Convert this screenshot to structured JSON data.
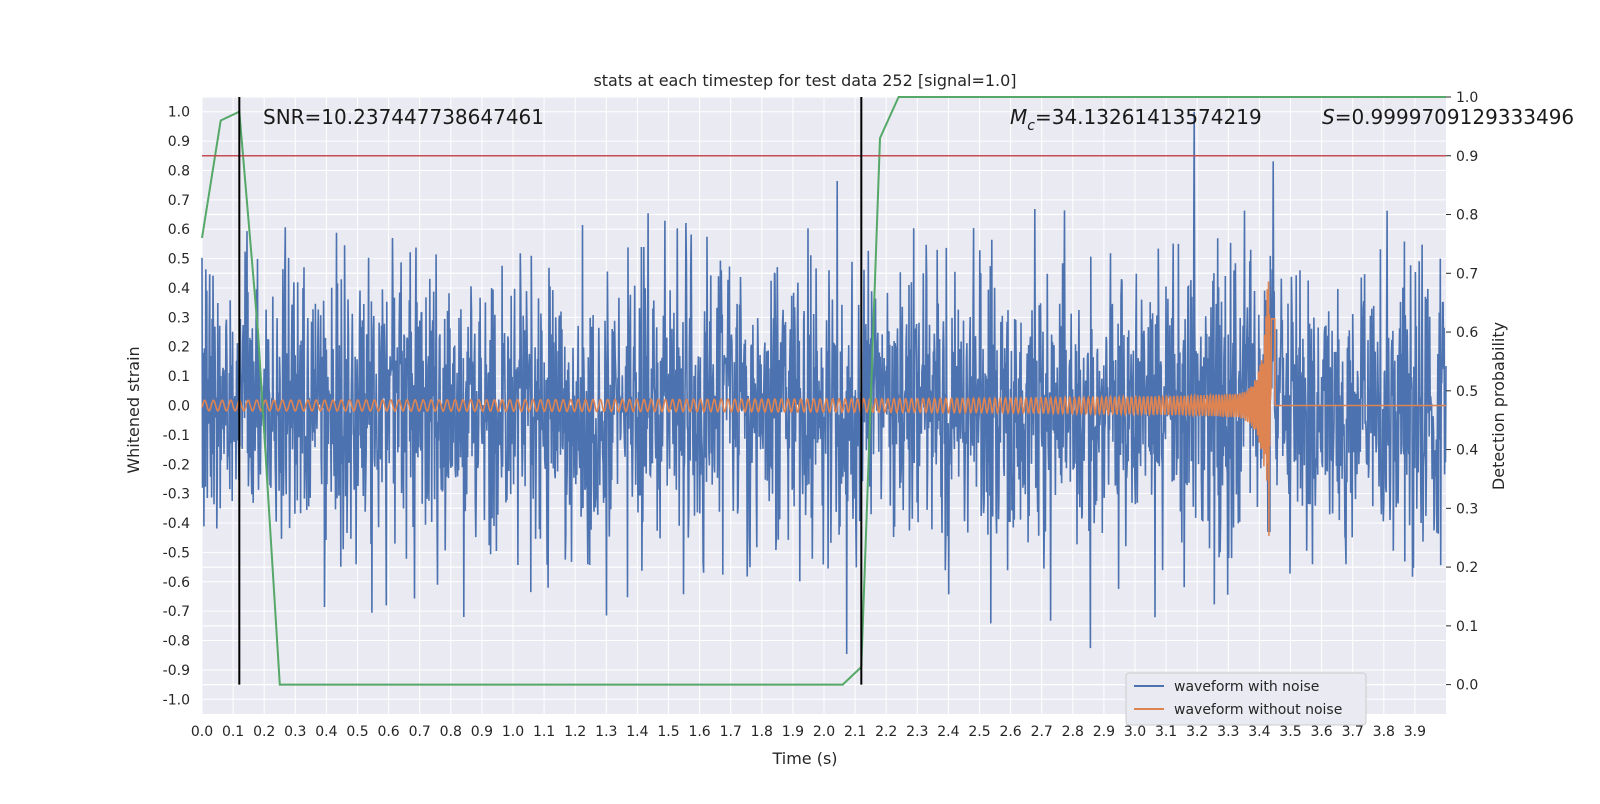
{
  "chart_data": {
    "type": "line",
    "title": "stats at each timestep for test data 252 [signal=1.0]",
    "xlabel": "Time (s)",
    "ylabel": "Whitened strain",
    "y2label": "Detection probability",
    "xlim": [
      0.0,
      4.0
    ],
    "ylim": [
      -1.05,
      1.05
    ],
    "y2lim": [
      -0.05,
      1.0
    ],
    "grid": true,
    "legend_position": "lower right",
    "x_ticks": [
      "0.0",
      "0.1",
      "0.2",
      "0.3",
      "0.4",
      "0.5",
      "0.6",
      "0.7",
      "0.8",
      "0.9",
      "1.0",
      "1.1",
      "1.2",
      "1.3",
      "1.4",
      "1.5",
      "1.6",
      "1.7",
      "1.8",
      "1.9",
      "2.0",
      "2.1",
      "2.2",
      "2.3",
      "2.4",
      "2.5",
      "2.6",
      "2.7",
      "2.8",
      "2.9",
      "3.0",
      "3.1",
      "3.2",
      "3.3",
      "3.4",
      "3.5",
      "3.6",
      "3.7",
      "3.8",
      "3.9"
    ],
    "y_ticks": [
      "1.0",
      "0.9",
      "0.8",
      "0.7",
      "0.6",
      "0.5",
      "0.4",
      "0.3",
      "0.2",
      "0.1",
      "0.0",
      "-0.1",
      "-0.2",
      "-0.3",
      "-0.4",
      "-0.5",
      "-0.6",
      "-0.7",
      "-0.8",
      "-0.9",
      "-1.0"
    ],
    "y2_ticks": [
      "1.0",
      "0.9",
      "0.8",
      "0.7",
      "0.6",
      "0.5",
      "0.4",
      "0.3",
      "0.2",
      "0.1",
      "0.0"
    ],
    "annotations": {
      "snr": "SNR=10.237447738647461",
      "mc_symbol": "M",
      "mc_subscript": "c",
      "mc_value": "=34.13261413574219",
      "s_symbol": "S",
      "s_value": "=0.9999709129333496"
    },
    "series": [
      {
        "name": "waveform with noise",
        "color": "#4c72b0",
        "axis": "left",
        "description_peaks": {
          "max": 1.0,
          "min": -0.96,
          "typical_amplitude": 0.45,
          "tallest_spike_x": 3.19
        }
      },
      {
        "name": "waveform without noise",
        "color": "#dd8452",
        "axis": "left",
        "chirp": {
          "start_x": 0.0,
          "merger_x": 3.43,
          "end_x": 4.0,
          "max_amplitude": 0.46,
          "min_amplitude": -0.57
        }
      },
      {
        "name": "",
        "color": "#55a868",
        "axis": "right",
        "x": [
          0.0,
          0.06,
          0.12,
          0.18,
          0.25,
          2.06,
          2.12,
          2.18,
          2.24,
          4.0
        ],
        "y": [
          0.76,
          0.96,
          0.975,
          0.6,
          0.0,
          0.0,
          0.03,
          0.93,
          1.0,
          1.0
        ]
      }
    ],
    "threshold_line": {
      "y2": 0.9,
      "color": "#c44e52"
    },
    "vertical_markers": {
      "x": [
        0.12,
        2.12
      ],
      "color": "#000000",
      "y2_range": [
        0.0,
        1.0
      ]
    },
    "plot_background": "#eaeaf2"
  }
}
